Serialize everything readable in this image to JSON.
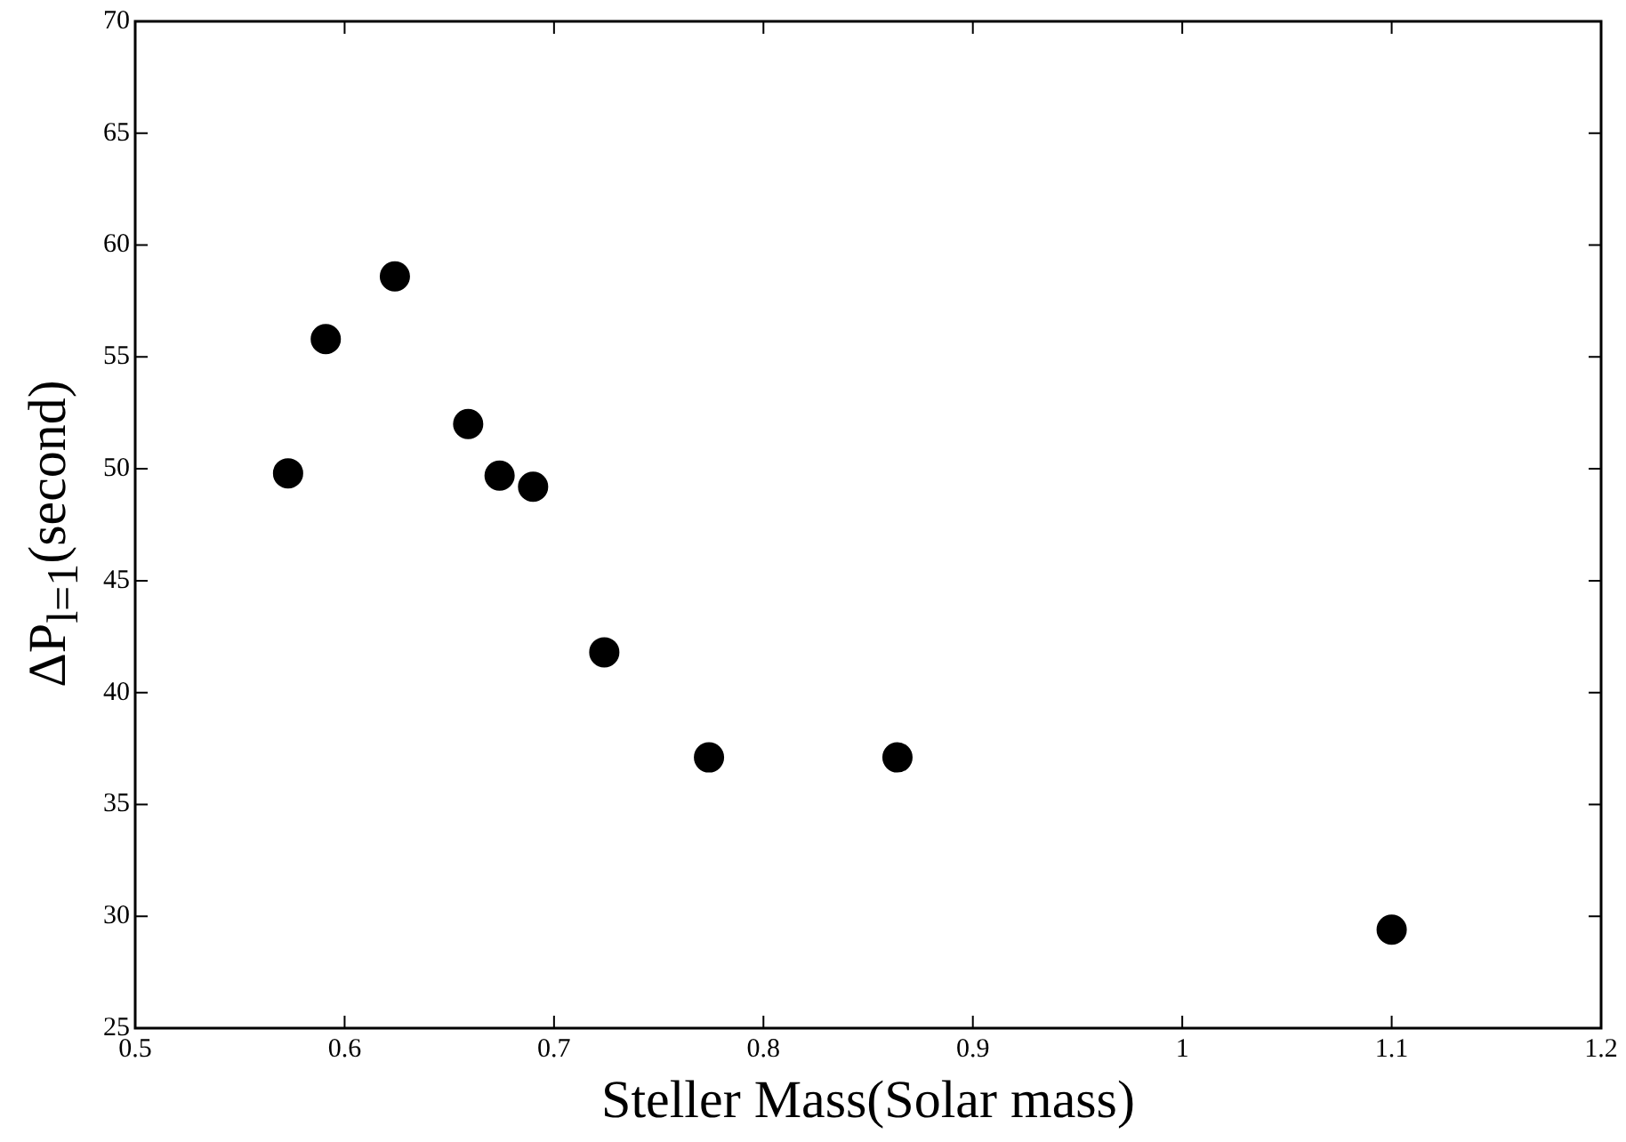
{
  "chart_data": {
    "type": "scatter",
    "xlabel": "Steller Mass(Solar mass)",
    "ylabel": "ΔP$_{l=1}$(second)",
    "x": [
      0.573,
      0.591,
      0.624,
      0.659,
      0.674,
      0.69,
      0.724,
      0.774,
      0.864,
      1.1
    ],
    "series": [
      {
        "color": "#000000",
        "values": [
          49.8,
          55.8,
          58.6,
          52.0,
          49.7,
          49.2,
          41.8,
          37.1,
          37.1,
          29.4
        ]
      }
    ],
    "xlim": [
      0.5,
      1.2
    ],
    "xticks": [
      0.5,
      0.6,
      0.7,
      0.8,
      0.9,
      1,
      1.1,
      1.2
    ],
    "ylim": [
      25,
      70
    ],
    "yticks": [
      25,
      30,
      35,
      40,
      45,
      50,
      55,
      60,
      65,
      70
    ],
    "marker": "circle",
    "grid": false,
    "legend": false
  }
}
